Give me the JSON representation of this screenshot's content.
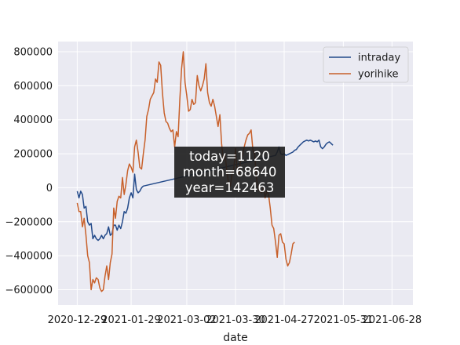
{
  "chart_data": {
    "type": "line",
    "title": "",
    "xlabel": "date",
    "ylabel": "",
    "x_tick_labels": [
      "2020-12-29",
      "2021-01-29",
      "2021-03-02",
      "2021-03-30",
      "2021-04-27",
      "2021-05-31",
      "2021-06-28"
    ],
    "y_tick_values": [
      -600000,
      -400000,
      -200000,
      0,
      200000,
      400000,
      600000,
      800000
    ],
    "y_tick_labels": [
      "−600000",
      "−400000",
      "−200000",
      "0",
      "200000",
      "400000",
      "600000",
      "800000"
    ],
    "ylim": [
      -690000,
      860000
    ],
    "grid": true,
    "legend_position": "top-right",
    "annotation": [
      "today=1120",
      "month=68640",
      "year=142463"
    ],
    "series": [
      {
        "name": "intraday",
        "color": "#234a8a",
        "points": [
          [
            "2020-12-29",
            -20000
          ],
          [
            "2020-12-30",
            -60000
          ],
          [
            "2020-12-31",
            -20000
          ],
          [
            "2021-01-01",
            -40000
          ],
          [
            "2021-01-02",
            -120000
          ],
          [
            "2021-01-03",
            -110000
          ],
          [
            "2021-01-04",
            -200000
          ],
          [
            "2021-01-05",
            -220000
          ],
          [
            "2021-01-06",
            -210000
          ],
          [
            "2021-01-07",
            -300000
          ],
          [
            "2021-01-08",
            -280000
          ],
          [
            "2021-01-09",
            -300000
          ],
          [
            "2021-01-10",
            -310000
          ],
          [
            "2021-01-11",
            -300000
          ],
          [
            "2021-01-12",
            -280000
          ],
          [
            "2021-01-13",
            -300000
          ],
          [
            "2021-01-14",
            -280000
          ],
          [
            "2021-01-15",
            -270000
          ],
          [
            "2021-01-16",
            -230000
          ],
          [
            "2021-01-17",
            -280000
          ],
          [
            "2021-01-18",
            -270000
          ],
          [
            "2021-01-19",
            -220000
          ],
          [
            "2021-01-20",
            -220000
          ],
          [
            "2021-01-21",
            -250000
          ],
          [
            "2021-01-22",
            -220000
          ],
          [
            "2021-01-23",
            -240000
          ],
          [
            "2021-01-24",
            -200000
          ],
          [
            "2021-01-25",
            -140000
          ],
          [
            "2021-01-26",
            -150000
          ],
          [
            "2021-01-27",
            -120000
          ],
          [
            "2021-01-28",
            -60000
          ],
          [
            "2021-01-29",
            -30000
          ],
          [
            "2021-01-30",
            -60000
          ],
          [
            "2021-01-31",
            80000
          ],
          [
            "2021-02-01",
            -10000
          ],
          [
            "2021-02-02",
            -30000
          ],
          [
            "2021-02-03",
            -20000
          ],
          [
            "2021-02-04",
            0
          ],
          [
            "2021-02-05",
            10000
          ],
          [
            "2021-04-22",
            190000
          ],
          [
            "2021-04-23",
            210000
          ],
          [
            "2021-04-24",
            240000
          ],
          [
            "2021-04-25",
            200000
          ],
          [
            "2021-04-26",
            195000
          ],
          [
            "2021-04-27",
            200000
          ],
          [
            "2021-04-28",
            190000
          ],
          [
            "2021-04-29",
            195000
          ],
          [
            "2021-04-30",
            200000
          ],
          [
            "2021-05-01",
            205000
          ],
          [
            "2021-05-02",
            210000
          ],
          [
            "2021-05-03",
            220000
          ],
          [
            "2021-05-04",
            225000
          ],
          [
            "2021-05-05",
            240000
          ],
          [
            "2021-05-06",
            250000
          ],
          [
            "2021-05-07",
            260000
          ],
          [
            "2021-05-08",
            270000
          ],
          [
            "2021-05-09",
            275000
          ],
          [
            "2021-05-10",
            280000
          ],
          [
            "2021-05-11",
            275000
          ],
          [
            "2021-05-12",
            280000
          ],
          [
            "2021-05-13",
            275000
          ],
          [
            "2021-05-14",
            270000
          ],
          [
            "2021-05-15",
            275000
          ],
          [
            "2021-05-16",
            270000
          ],
          [
            "2021-05-17",
            280000
          ],
          [
            "2021-05-18",
            240000
          ],
          [
            "2021-05-19",
            230000
          ],
          [
            "2021-05-20",
            240000
          ],
          [
            "2021-05-21",
            255000
          ],
          [
            "2021-05-22",
            265000
          ],
          [
            "2021-05-23",
            270000
          ],
          [
            "2021-05-24",
            260000
          ],
          [
            "2021-05-25",
            250000
          ]
        ]
      },
      {
        "name": "yorihike",
        "color": "#c8602a",
        "points": [
          [
            "2020-12-29",
            -90000
          ],
          [
            "2020-12-30",
            -140000
          ],
          [
            "2020-12-31",
            -140000
          ],
          [
            "2021-01-01",
            -230000
          ],
          [
            "2021-01-02",
            -180000
          ],
          [
            "2021-01-03",
            -280000
          ],
          [
            "2021-01-04",
            -400000
          ],
          [
            "2021-01-05",
            -440000
          ],
          [
            "2021-01-06",
            -600000
          ],
          [
            "2021-01-07",
            -540000
          ],
          [
            "2021-01-08",
            -560000
          ],
          [
            "2021-01-09",
            -530000
          ],
          [
            "2021-01-10",
            -540000
          ],
          [
            "2021-01-11",
            -590000
          ],
          [
            "2021-01-12",
            -610000
          ],
          [
            "2021-01-13",
            -600000
          ],
          [
            "2021-01-14",
            -520000
          ],
          [
            "2021-01-15",
            -460000
          ],
          [
            "2021-01-16",
            -540000
          ],
          [
            "2021-01-17",
            -440000
          ],
          [
            "2021-01-18",
            -390000
          ],
          [
            "2021-01-19",
            -120000
          ],
          [
            "2021-01-20",
            -180000
          ],
          [
            "2021-01-21",
            -80000
          ],
          [
            "2021-01-22",
            -50000
          ],
          [
            "2021-01-23",
            -60000
          ],
          [
            "2021-01-24",
            60000
          ],
          [
            "2021-01-25",
            -40000
          ],
          [
            "2021-01-26",
            20000
          ],
          [
            "2021-01-27",
            100000
          ],
          [
            "2021-01-28",
            140000
          ],
          [
            "2021-01-29",
            120000
          ],
          [
            "2021-01-30",
            90000
          ],
          [
            "2021-01-31",
            240000
          ],
          [
            "2021-02-01",
            280000
          ],
          [
            "2021-02-02",
            210000
          ],
          [
            "2021-02-03",
            120000
          ],
          [
            "2021-02-04",
            110000
          ],
          [
            "2021-02-05",
            200000
          ],
          [
            "2021-02-06",
            280000
          ],
          [
            "2021-02-07",
            420000
          ],
          [
            "2021-02-08",
            460000
          ],
          [
            "2021-02-09",
            520000
          ],
          [
            "2021-02-10",
            540000
          ],
          [
            "2021-02-11",
            560000
          ],
          [
            "2021-02-12",
            640000
          ],
          [
            "2021-02-13",
            620000
          ],
          [
            "2021-02-14",
            740000
          ],
          [
            "2021-02-15",
            720000
          ],
          [
            "2021-02-16",
            560000
          ],
          [
            "2021-02-17",
            440000
          ],
          [
            "2021-02-18",
            390000
          ],
          [
            "2021-02-19",
            380000
          ],
          [
            "2021-02-20",
            350000
          ],
          [
            "2021-02-21",
            330000
          ],
          [
            "2021-02-22",
            340000
          ],
          [
            "2021-02-23",
            240000
          ],
          [
            "2021-02-24",
            330000
          ],
          [
            "2021-02-25",
            300000
          ],
          [
            "2021-02-26",
            520000
          ],
          [
            "2021-02-27",
            700000
          ],
          [
            "2021-02-28",
            800000
          ],
          [
            "2021-03-01",
            620000
          ],
          [
            "2021-03-02",
            540000
          ],
          [
            "2021-03-03",
            450000
          ],
          [
            "2021-03-04",
            460000
          ],
          [
            "2021-03-05",
            520000
          ],
          [
            "2021-03-06",
            490000
          ],
          [
            "2021-03-07",
            500000
          ],
          [
            "2021-03-08",
            660000
          ],
          [
            "2021-03-09",
            600000
          ],
          [
            "2021-03-10",
            570000
          ],
          [
            "2021-03-11",
            600000
          ],
          [
            "2021-03-12",
            640000
          ],
          [
            "2021-03-13",
            730000
          ],
          [
            "2021-03-14",
            560000
          ],
          [
            "2021-03-15",
            500000
          ],
          [
            "2021-03-16",
            480000
          ],
          [
            "2021-03-17",
            520000
          ],
          [
            "2021-03-18",
            480000
          ],
          [
            "2021-03-19",
            420000
          ],
          [
            "2021-03-20",
            360000
          ],
          [
            "2021-03-21",
            430000
          ],
          [
            "2021-03-22",
            260000
          ],
          [
            "2021-03-23",
            160000
          ],
          [
            "2021-03-24",
            200000
          ],
          [
            "2021-03-25",
            100000
          ],
          [
            "2021-03-26",
            30000
          ],
          [
            "2021-03-27",
            10000
          ],
          [
            "2021-03-28",
            80000
          ],
          [
            "2021-03-29",
            110000
          ],
          [
            "2021-03-30",
            230000
          ],
          [
            "2021-03-31",
            90000
          ],
          [
            "2021-04-01",
            80000
          ],
          [
            "2021-04-02",
            170000
          ],
          [
            "2021-04-03",
            190000
          ],
          [
            "2021-04-04",
            240000
          ],
          [
            "2021-04-05",
            280000
          ],
          [
            "2021-04-06",
            310000
          ],
          [
            "2021-04-07",
            320000
          ],
          [
            "2021-04-08",
            340000
          ],
          [
            "2021-04-09",
            220000
          ],
          [
            "2021-04-10",
            200000
          ],
          [
            "2021-04-11",
            60000
          ],
          [
            "2021-04-12",
            -10000
          ],
          [
            "2021-04-13",
            -20000
          ],
          [
            "2021-04-14",
            -30000
          ],
          [
            "2021-04-15",
            0
          ],
          [
            "2021-04-16",
            -60000
          ],
          [
            "2021-04-17",
            -20000
          ],
          [
            "2021-04-18",
            -40000
          ],
          [
            "2021-04-19",
            -120000
          ],
          [
            "2021-04-20",
            -220000
          ],
          [
            "2021-04-21",
            -240000
          ],
          [
            "2021-04-22",
            -320000
          ],
          [
            "2021-04-23",
            -410000
          ],
          [
            "2021-04-24",
            -280000
          ],
          [
            "2021-04-25",
            -270000
          ],
          [
            "2021-04-26",
            -320000
          ],
          [
            "2021-04-27",
            -330000
          ],
          [
            "2021-04-28",
            -420000
          ],
          [
            "2021-04-29",
            -460000
          ],
          [
            "2021-04-30",
            -440000
          ],
          [
            "2021-05-01",
            -390000
          ],
          [
            "2021-05-02",
            -330000
          ],
          [
            "2021-05-03",
            -320000
          ]
        ]
      }
    ]
  }
}
